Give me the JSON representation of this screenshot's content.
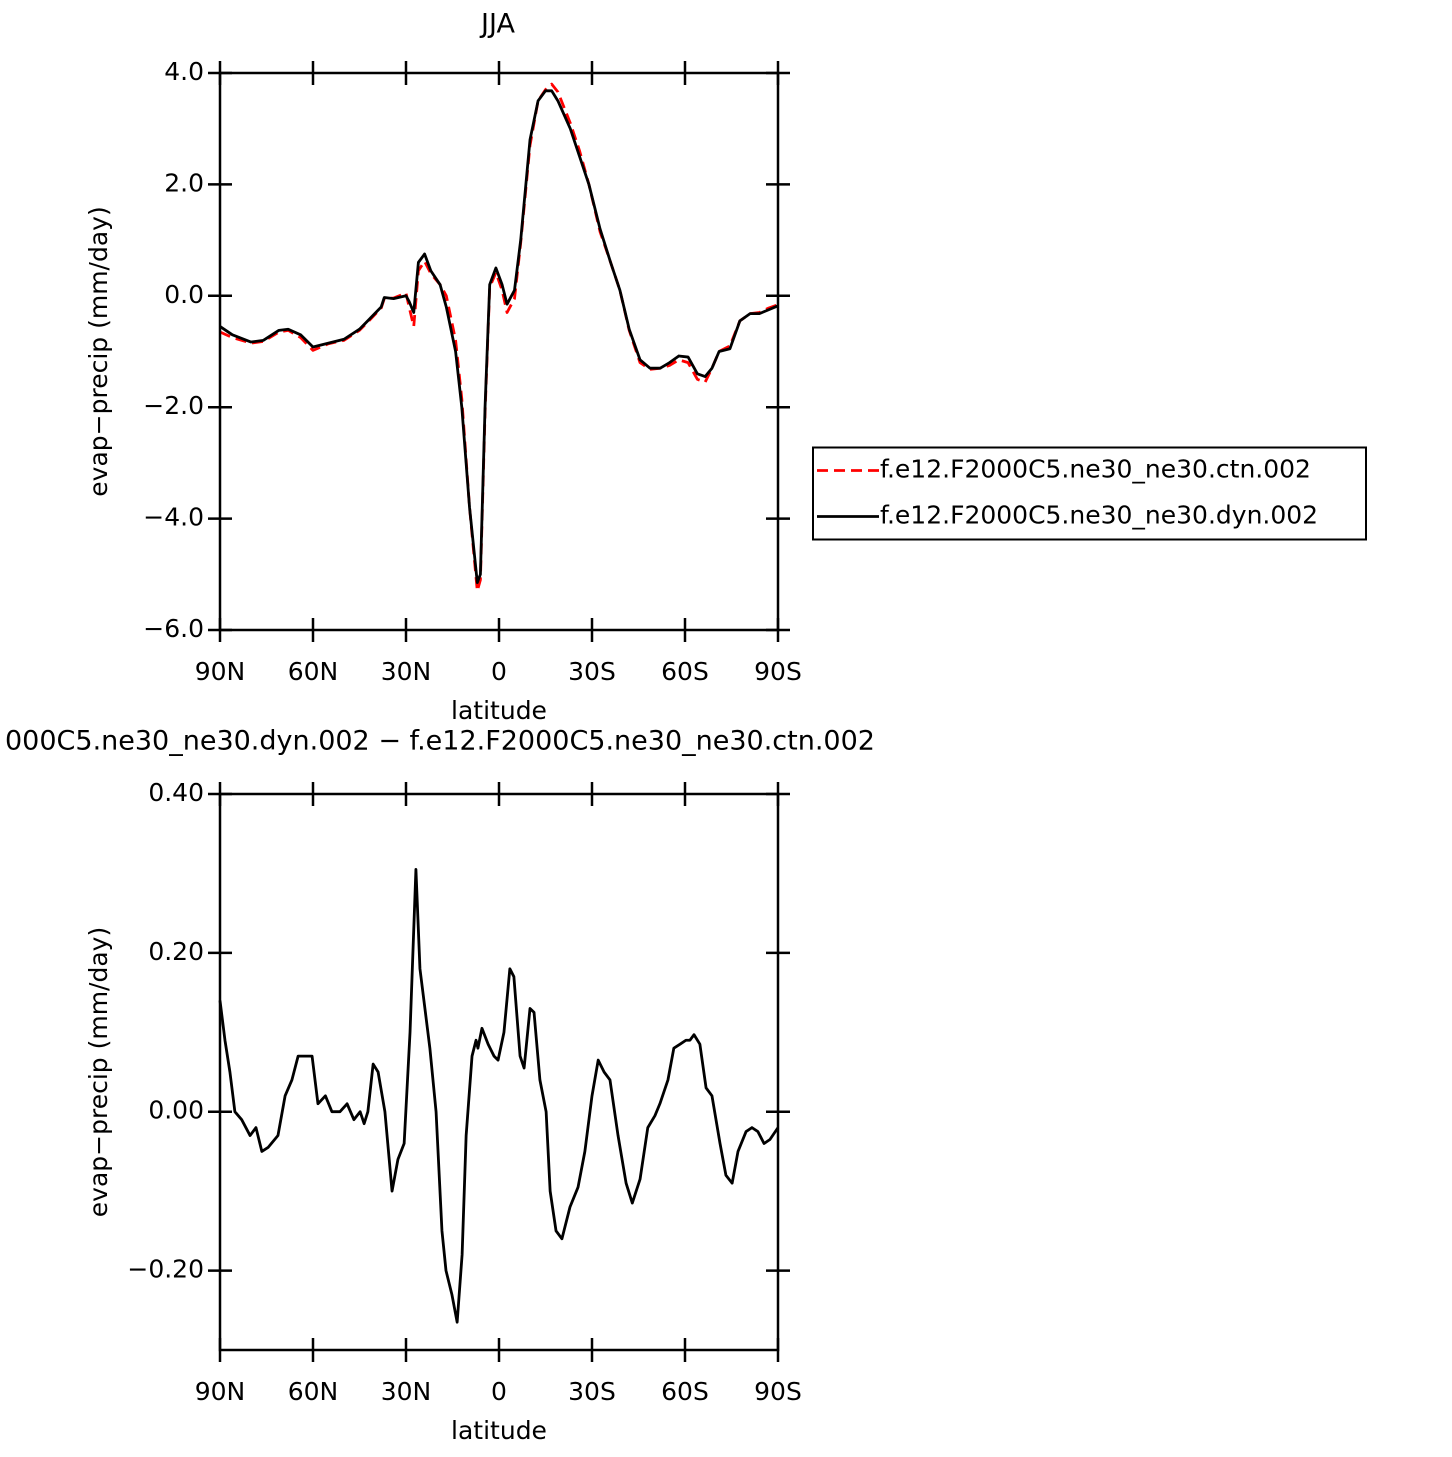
{
  "chart_data": [
    {
      "type": "line",
      "title": "JJA",
      "ylabel": "evap−precip (mm/day)",
      "xlabel": "latitude",
      "xlim": [
        90,
        -90
      ],
      "ylim": [
        -6,
        4
      ],
      "xticks": [
        {
          "value": 90,
          "label": "90N"
        },
        {
          "value": 60,
          "label": "60N"
        },
        {
          "value": 30,
          "label": "30N"
        },
        0,
        {
          "value": -30,
          "label": "30S"
        },
        {
          "value": -60,
          "label": "60S"
        },
        {
          "value": -90,
          "label": "90S"
        }
      ],
      "yticks": [
        {
          "value": -6,
          "label": "−6.0"
        },
        {
          "value": -4,
          "label": "−4.0"
        },
        {
          "value": -2,
          "label": "−2.0"
        },
        {
          "value": 0,
          "label": "0.0"
        },
        {
          "value": 2,
          "label": "2.0"
        },
        {
          "value": 4,
          "label": "4.0"
        }
      ],
      "legend": "right",
      "x": [
        90,
        86,
        80,
        76,
        71,
        68,
        64,
        60,
        55,
        50,
        45,
        42,
        38,
        37,
        34,
        30,
        29,
        27.5,
        26,
        24,
        22,
        19,
        17,
        14,
        12,
        9.5,
        7,
        6,
        4.5,
        3,
        1,
        -1,
        -2.6,
        -5,
        -7,
        -10,
        -12.6,
        -15,
        -17,
        -19,
        -23,
        -26,
        -29,
        -32.6,
        -36,
        -39,
        -42,
        -45.5,
        -48.7,
        -52,
        -55,
        -58,
        -61,
        -64,
        -66.5,
        -68.7,
        -71,
        -74.5,
        -77.7,
        -81,
        -84,
        -87,
        -90
      ],
      "series": [
        {
          "name": "f.e12.F2000C5.ne30_ne30.ctn.002",
          "color": "#ff0000",
          "dash": true,
          "values": [
            -0.65,
            -0.75,
            -0.85,
            -0.82,
            -0.65,
            -0.62,
            -0.75,
            -0.98,
            -0.86,
            -0.8,
            -0.62,
            -0.45,
            -0.22,
            -0.05,
            -0.04,
            0.05,
            -0.2,
            -0.55,
            0.45,
            0.62,
            0.4,
            0.2,
            0.0,
            -0.8,
            -1.85,
            -3.8,
            -5.3,
            -5.1,
            -2.1,
            0.15,
            0.42,
            0.1,
            -0.3,
            -0.05,
            0.95,
            2.7,
            3.5,
            3.7,
            3.8,
            3.66,
            3.1,
            2.6,
            2.0,
            1.15,
            0.6,
            0.1,
            -0.62,
            -1.2,
            -1.32,
            -1.3,
            -1.25,
            -1.15,
            -1.2,
            -1.5,
            -1.55,
            -1.3,
            -1.0,
            -0.9,
            -0.45,
            -0.32,
            -0.3,
            -0.22,
            -0.16
          ]
        },
        {
          "name": "f.e12.F2000C5.ne30_ne30.dyn.002",
          "color": "#000000",
          "dash": false,
          "values": [
            -0.55,
            -0.7,
            -0.83,
            -0.8,
            -0.62,
            -0.6,
            -0.7,
            -0.92,
            -0.85,
            -0.78,
            -0.6,
            -0.43,
            -0.2,
            -0.03,
            -0.05,
            0.0,
            -0.1,
            -0.3,
            0.6,
            0.75,
            0.45,
            0.2,
            -0.2,
            -1.0,
            -2.0,
            -3.8,
            -5.15,
            -5.0,
            -2.0,
            0.2,
            0.5,
            0.2,
            -0.15,
            0.1,
            1.0,
            2.8,
            3.5,
            3.68,
            3.68,
            3.5,
            3.0,
            2.5,
            2.0,
            1.2,
            0.6,
            0.1,
            -0.6,
            -1.15,
            -1.3,
            -1.3,
            -1.2,
            -1.08,
            -1.1,
            -1.4,
            -1.45,
            -1.3,
            -1.0,
            -0.95,
            -0.45,
            -0.32,
            -0.32,
            -0.25,
            -0.18
          ]
        }
      ]
    },
    {
      "type": "line",
      "title": "000C5.ne30_ne30.dyn.002 − f.e12.F2000C5.ne30_ne30.ctn.002",
      "ylabel": "evap−precip (mm/day)",
      "xlabel": "latitude",
      "xlim": [
        90,
        -90
      ],
      "ylim": [
        -0.3,
        0.4
      ],
      "xticks": [
        {
          "value": 90,
          "label": "90N"
        },
        {
          "value": 60,
          "label": "60N"
        },
        {
          "value": 30,
          "label": "30N"
        },
        0,
        {
          "value": -30,
          "label": "30S"
        },
        {
          "value": -60,
          "label": "60S"
        },
        {
          "value": -90,
          "label": "90S"
        }
      ],
      "yticks": [
        {
          "value": -0.2,
          "label": "−0.20"
        },
        {
          "value": 0,
          "label": "0.00"
        },
        {
          "value": 0.2,
          "label": "0.20"
        },
        {
          "value": 0.4,
          "label": "0.40"
        }
      ],
      "x": [
        90,
        88.4,
        86.8,
        85.2,
        83,
        80.3,
        78.4,
        76.5,
        74.5,
        71.3,
        69,
        66.8,
        64.8,
        62.6,
        60.3,
        58.4,
        56,
        53.9,
        51.3,
        49,
        46.8,
        44.8,
        43.5,
        42.3,
        40.6,
        39,
        36.8,
        34.5,
        32.6,
        30.6,
        28.7,
        26.8,
        25.5,
        23.9,
        22.3,
        20.3,
        18.4,
        17.1,
        15.2,
        13.5,
        11.9,
        10.6,
        8.7,
        7.4,
        6.8,
        5.5,
        3.5,
        1.6,
        0.3,
        -1.6,
        -3.5,
        -4.8,
        -6.8,
        -8.1,
        -10,
        -11.3,
        -13.2,
        -15.2,
        -16.5,
        -18.4,
        -20.3,
        -22.9,
        -25.5,
        -27.7,
        -30,
        -32,
        -33.9,
        -35.8,
        -38.4,
        -41,
        -43,
        -45.5,
        -48,
        -50.3,
        -51.9,
        -54.5,
        -56.4,
        -58.4,
        -60.3,
        -61.6,
        -62.9,
        -64.8,
        -66.8,
        -68.7,
        -71.3,
        -73.2,
        -75.2,
        -77.1,
        -79.7,
        -81.6,
        -83.5,
        -85.5,
        -87.4,
        -90
      ],
      "series": [
        {
          "color": "#000000",
          "values": [
            0.14,
            0.09,
            0.05,
            0.0,
            -0.01,
            -0.03,
            -0.02,
            -0.05,
            -0.045,
            -0.03,
            0.02,
            0.04,
            0.07,
            0.07,
            0.07,
            0.01,
            0.02,
            0.0,
            0.0,
            0.01,
            -0.01,
            0.0,
            -0.015,
            0.0,
            0.06,
            0.05,
            0.0,
            -0.1,
            -0.06,
            -0.04,
            0.1,
            0.305,
            0.18,
            0.13,
            0.08,
            0.0,
            -0.15,
            -0.2,
            -0.23,
            -0.265,
            -0.18,
            -0.03,
            0.07,
            0.09,
            0.08,
            0.105,
            0.085,
            0.07,
            0.065,
            0.1,
            0.18,
            0.17,
            0.07,
            0.055,
            0.13,
            0.125,
            0.04,
            0.0,
            -0.1,
            -0.15,
            -0.16,
            -0.12,
            -0.095,
            -0.05,
            0.02,
            0.065,
            0.05,
            0.04,
            -0.03,
            -0.09,
            -0.115,
            -0.085,
            -0.02,
            -0.005,
            0.01,
            0.04,
            0.08,
            0.085,
            0.09,
            0.09,
            0.097,
            0.085,
            0.03,
            0.02,
            -0.04,
            -0.08,
            -0.09,
            -0.05,
            -0.025,
            -0.02,
            -0.025,
            -0.04,
            -0.035,
            -0.02
          ]
        }
      ]
    }
  ]
}
